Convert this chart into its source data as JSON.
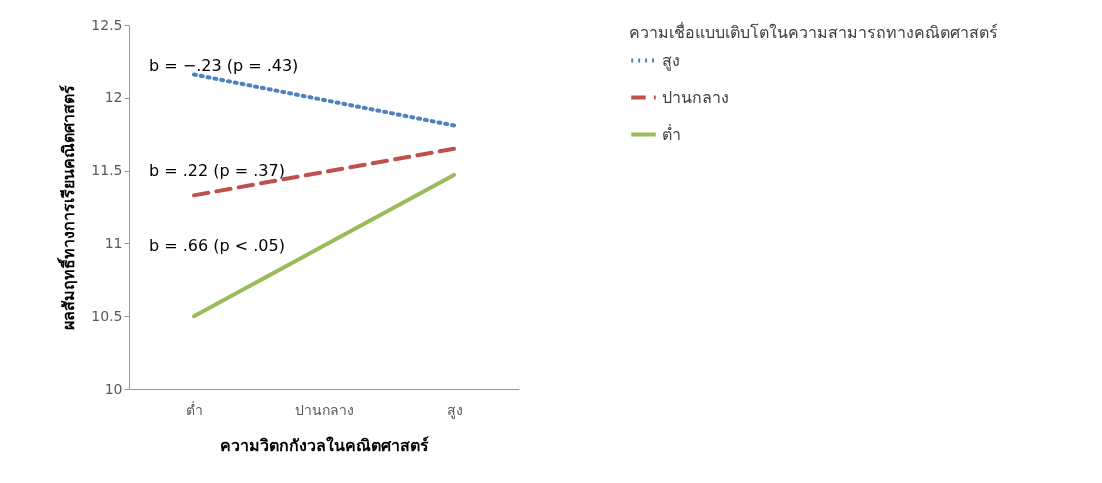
{
  "chart_data": {
    "type": "line",
    "xlabel": "ความวิตกกังวลในคณิตศาสตร์",
    "ylabel": "ผลสัมฤทธิ์ทางการเรียนคณิตศาสตร์",
    "legend_title": "ความเชื่อแบบเติบโตในความสามารถทางคณิตศาสตร์",
    "categories": [
      "ต่ำ",
      "ปานกลาง",
      "สูง"
    ],
    "series": [
      {
        "name": "สูง",
        "color": "#4f81bd",
        "line_style": "dotted",
        "values": [
          12.16,
          null,
          11.81
        ]
      },
      {
        "name": "ปานกลาง",
        "color": "#c0504d",
        "line_style": "dashed",
        "values": [
          11.33,
          null,
          11.65
        ]
      },
      {
        "name": "ต่ำ",
        "color": "#9bbb59",
        "line_style": "solid",
        "values": [
          10.5,
          null,
          11.47
        ]
      }
    ],
    "annotations": [
      "b = −.23 (p = .43)",
      "b = .22 (p = .37)",
      "b = .66 (p < .05)"
    ],
    "ylim": [
      10,
      12.5
    ],
    "yticks": [
      10,
      10.5,
      11,
      11.5,
      12,
      12.5
    ],
    "grid": false,
    "legend": "right",
    "marker": "none"
  }
}
